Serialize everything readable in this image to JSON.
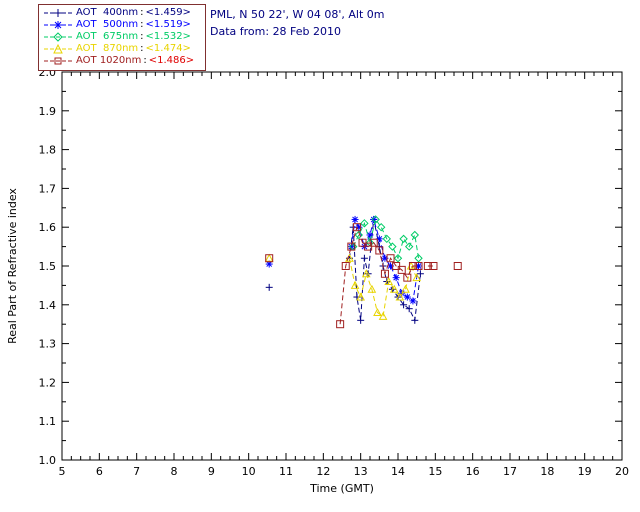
{
  "header": {
    "line1": "PML, N 50 22', W 04 08', Alt 0m",
    "line2": "Data from: 28 Feb 2010"
  },
  "legend": {
    "separator": ":"
  },
  "chart_data": {
    "type": "line",
    "title": "",
    "xlabel": "Time (GMT)",
    "ylabel": "Real Part of Refractive index",
    "xlim": [
      5,
      20
    ],
    "ylim": [
      1.0,
      2.0
    ],
    "xticks": [
      5,
      6,
      7,
      8,
      9,
      10,
      11,
      12,
      13,
      14,
      15,
      16,
      17,
      18,
      19,
      20
    ],
    "yticks": [
      1.0,
      1.1,
      1.2,
      1.3,
      1.4,
      1.5,
      1.6,
      1.7,
      1.8,
      1.9,
      2.0
    ],
    "grid": false,
    "legend_position": "top-left",
    "series": [
      {
        "name": "AOT  400nm",
        "value": "<1.459>",
        "color": "#000080",
        "value_color": "#000080",
        "marker": "plus",
        "segments": [
          [
            [
              10.55,
              1.445
            ]
          ],
          [
            [
              12.7,
              1.52
            ],
            [
              12.8,
              1.6
            ],
            [
              12.9,
              1.42
            ],
            [
              13.0,
              1.36
            ],
            [
              13.1,
              1.52
            ],
            [
              13.2,
              1.48
            ],
            [
              13.35,
              1.62
            ],
            [
              13.5,
              1.55
            ],
            [
              13.6,
              1.5
            ],
            [
              13.7,
              1.46
            ],
            [
              13.85,
              1.44
            ],
            [
              14.0,
              1.42
            ],
            [
              14.15,
              1.4
            ],
            [
              14.3,
              1.39
            ],
            [
              14.45,
              1.36
            ],
            [
              14.6,
              1.48
            ]
          ]
        ]
      },
      {
        "name": "AOT  500nm",
        "value": "<1.519>",
        "color": "#0000ff",
        "value_color": "#0000ff",
        "marker": "asterisk",
        "segments": [
          [
            [
              10.55,
              1.505
            ]
          ],
          [
            [
              12.75,
              1.55
            ],
            [
              12.85,
              1.62
            ],
            [
              12.95,
              1.6
            ],
            [
              13.1,
              1.55
            ],
            [
              13.25,
              1.58
            ],
            [
              13.35,
              1.62
            ],
            [
              13.5,
              1.57
            ],
            [
              13.65,
              1.52
            ],
            [
              13.8,
              1.5
            ],
            [
              13.95,
              1.47
            ],
            [
              14.1,
              1.43
            ],
            [
              14.25,
              1.42
            ],
            [
              14.4,
              1.41
            ],
            [
              14.55,
              1.5
            ]
          ]
        ]
      },
      {
        "name": "AOT  675nm",
        "value": "<1.532>",
        "color": "#00cc66",
        "value_color": "#00cc66",
        "marker": "diamond",
        "segments": [
          [
            [
              12.8,
              1.55
            ],
            [
              12.95,
              1.58
            ],
            [
              13.1,
              1.61
            ],
            [
              13.25,
              1.56
            ],
            [
              13.4,
              1.62
            ],
            [
              13.55,
              1.6
            ],
            [
              13.7,
              1.57
            ],
            [
              13.85,
              1.55
            ],
            [
              14.0,
              1.52
            ],
            [
              14.15,
              1.57
            ],
            [
              14.3,
              1.55
            ],
            [
              14.45,
              1.58
            ],
            [
              14.55,
              1.52
            ]
          ]
        ]
      },
      {
        "name": "AOT  870nm",
        "value": "<1.474>",
        "color": "#e8d400",
        "value_color": "#e8d400",
        "marker": "triangle",
        "segments": [
          [
            [
              10.55,
              1.52
            ]
          ],
          [
            [
              12.7,
              1.52
            ],
            [
              12.85,
              1.45
            ],
            [
              13.0,
              1.42
            ],
            [
              13.15,
              1.48
            ],
            [
              13.3,
              1.44
            ],
            [
              13.45,
              1.38
            ],
            [
              13.6,
              1.37
            ],
            [
              13.75,
              1.46
            ],
            [
              13.9,
              1.44
            ],
            [
              14.05,
              1.42
            ],
            [
              14.2,
              1.44
            ],
            [
              14.35,
              1.5
            ],
            [
              14.5,
              1.47
            ]
          ]
        ]
      },
      {
        "name": "AOT 1020nm",
        "value": "<1.486>",
        "color": "#a02020",
        "value_color": "#e00000",
        "marker": "square",
        "segments": [
          [
            [
              10.55,
              1.52
            ]
          ],
          [
            [
              12.45,
              1.35
            ],
            [
              12.6,
              1.5
            ],
            [
              12.75,
              1.55
            ],
            [
              12.9,
              1.6
            ],
            [
              13.05,
              1.56
            ],
            [
              13.2,
              1.55
            ],
            [
              13.35,
              1.56
            ],
            [
              13.5,
              1.54
            ],
            [
              13.65,
              1.48
            ],
            [
              13.8,
              1.52
            ],
            [
              13.95,
              1.5
            ],
            [
              14.1,
              1.49
            ],
            [
              14.25,
              1.47
            ],
            [
              14.4,
              1.5
            ],
            [
              14.55,
              1.5
            ]
          ],
          [
            [
              14.8,
              1.5
            ],
            [
              14.95,
              1.5
            ]
          ],
          [
            [
              15.6,
              1.5
            ]
          ]
        ]
      }
    ]
  }
}
